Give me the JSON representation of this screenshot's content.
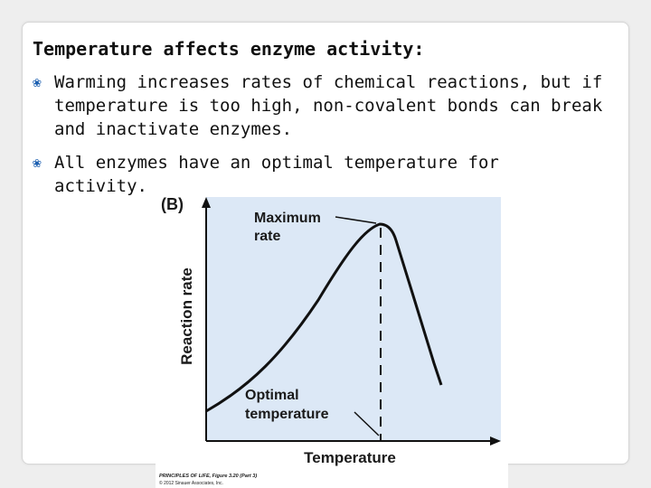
{
  "slide": {
    "title": "Temperature affects enzyme activity:",
    "bullets": [
      {
        "icon": "hollow-leaf-bullet-icon",
        "text": "Warming increases rates of chemical reactions, but if temperature is too high, non-covalent bonds can break and inactivate enzymes."
      },
      {
        "icon": "hollow-leaf-bullet-icon",
        "text": "All enzymes have an optimal temperature for activity."
      }
    ]
  },
  "figure": {
    "panel_label": "(B)",
    "y_axis_label": "Reaction rate",
    "x_axis_label": "Temperature",
    "annotations": {
      "max_rate_line1": "Maximum",
      "max_rate_line2": "rate",
      "optimal_line1": "Optimal",
      "optimal_line2": "temperature"
    },
    "credit_line1": "PRINCIPLES OF LIFE, Figure 3.20 (Part 3)",
    "credit_line2": "© 2012 Sinauer Associates, Inc.",
    "colors": {
      "plot_background": "#dce8f6",
      "curve": "#111111",
      "bullet": "#1c5fb0"
    }
  }
}
